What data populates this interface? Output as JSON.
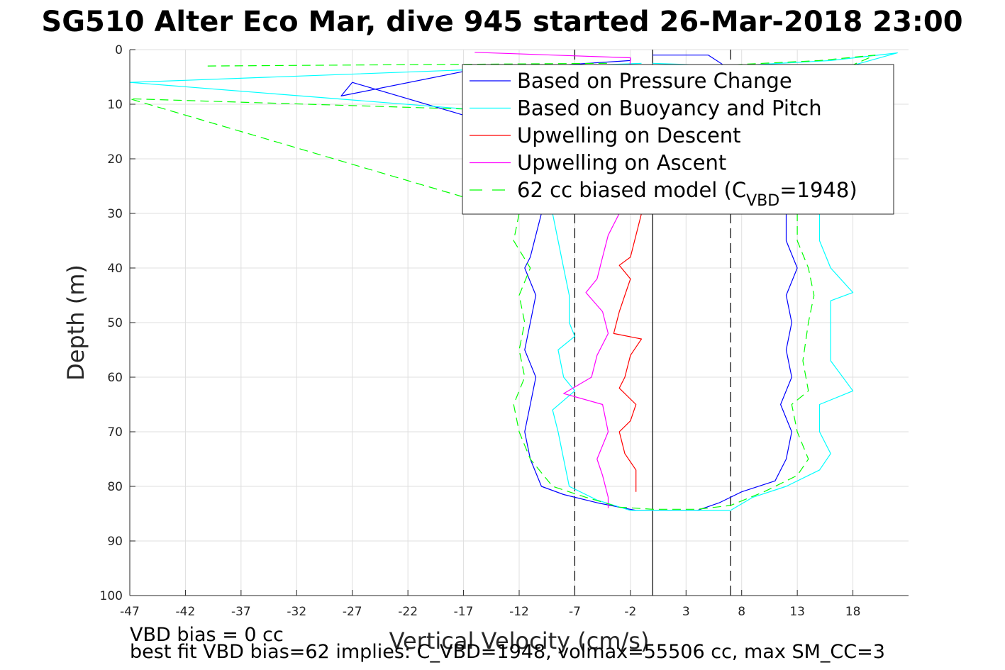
{
  "chart_data": {
    "type": "line",
    "title": "SG510 Alter Eco Mar, dive 945 started 26-Mar-2018 23:00",
    "xlabel": "Vertical Velocity (cm/s)",
    "ylabel": "Depth (m)",
    "xlim": [
      -47,
      23
    ],
    "ylim": [
      0,
      100
    ],
    "y_reversed": true,
    "grid": true,
    "x_ticks": [
      -47,
      -42,
      -37,
      -32,
      -27,
      -22,
      -17,
      -12,
      -7,
      -2,
      3,
      8,
      13,
      18
    ],
    "y_ticks": [
      0,
      10,
      20,
      30,
      40,
      50,
      60,
      70,
      80,
      90,
      100
    ],
    "legend_position": "top-right",
    "reference_lines": [
      {
        "orientation": "vertical",
        "x": 0,
        "style": "solid",
        "color": "#000000"
      },
      {
        "orientation": "vertical",
        "x": -7,
        "style": "dashed",
        "color": "#000000"
      },
      {
        "orientation": "vertical",
        "x": 7,
        "style": "dashed",
        "color": "#000000"
      }
    ],
    "series": [
      {
        "name": "Based on Pressure Change",
        "color": "#0000ff",
        "style": "solid",
        "points": [
          [
            -2,
            1.5
          ],
          [
            -2,
            2
          ],
          [
            -17,
            4
          ],
          [
            -28,
            8.5
          ],
          [
            -27,
            6
          ],
          [
            -17,
            12
          ],
          [
            -10,
            22
          ],
          [
            -10,
            30
          ],
          [
            -10.5,
            34
          ],
          [
            -11,
            38
          ],
          [
            -11.5,
            40
          ],
          [
            -10.5,
            45
          ],
          [
            -11,
            50
          ],
          [
            -11.5,
            55
          ],
          [
            -10.5,
            60
          ],
          [
            -11,
            65
          ],
          [
            -11.5,
            70
          ],
          [
            -11,
            75
          ],
          [
            -10,
            80
          ],
          [
            -8,
            81.5
          ],
          [
            -5,
            83
          ],
          [
            -1.5,
            84.4
          ],
          [
            0,
            84.4
          ],
          [
            4,
            84.4
          ],
          [
            6,
            83
          ],
          [
            8,
            81
          ],
          [
            11,
            79
          ],
          [
            12,
            75
          ],
          [
            12.5,
            70
          ],
          [
            11.5,
            65
          ],
          [
            12.5,
            60
          ],
          [
            12,
            55
          ],
          [
            12.5,
            50
          ],
          [
            12,
            45
          ],
          [
            13,
            40
          ],
          [
            12,
            35
          ],
          [
            12,
            30
          ],
          [
            12,
            22
          ],
          [
            8,
            5
          ],
          [
            5,
            1
          ],
          [
            0,
            1
          ]
        ]
      },
      {
        "name": "Based on Buoyancy and Pitch",
        "color": "#00ffff",
        "style": "solid",
        "points": [
          [
            -1,
            2.5
          ],
          [
            -47,
            6
          ],
          [
            -16,
            11
          ],
          [
            -8,
            22
          ],
          [
            -9,
            30
          ],
          [
            -8.5,
            35
          ],
          [
            -8,
            40
          ],
          [
            -7.5,
            45
          ],
          [
            -7.5,
            50
          ],
          [
            -7,
            52.5
          ],
          [
            -8.5,
            55
          ],
          [
            -8,
            60
          ],
          [
            -7,
            62.5
          ],
          [
            -9,
            66
          ],
          [
            -8.5,
            70
          ],
          [
            -8,
            75
          ],
          [
            -7.5,
            80
          ],
          [
            -5,
            82.5
          ],
          [
            -2,
            84.4
          ],
          [
            0,
            84.4
          ],
          [
            4,
            84.4
          ],
          [
            7,
            84.4
          ],
          [
            9,
            82
          ],
          [
            12,
            80
          ],
          [
            15,
            77
          ],
          [
            16,
            74
          ],
          [
            15,
            70
          ],
          [
            15,
            65
          ],
          [
            18,
            62.5
          ],
          [
            16,
            57
          ],
          [
            16,
            50
          ],
          [
            16,
            46
          ],
          [
            18,
            44.5
          ],
          [
            16,
            40
          ],
          [
            15,
            35
          ],
          [
            15,
            30
          ],
          [
            14,
            20
          ],
          [
            9,
            8
          ],
          [
            22,
            0.6
          ],
          [
            16,
            2
          ],
          [
            7,
            3
          ],
          [
            0,
            2.5
          ]
        ]
      },
      {
        "name": "Upwelling on Descent",
        "color": "#ff0000",
        "style": "solid",
        "points": [
          [
            -1,
            30
          ],
          [
            -1.5,
            34
          ],
          [
            -2,
            38
          ],
          [
            -3,
            39.5
          ],
          [
            -2,
            42
          ],
          [
            -2.5,
            45
          ],
          [
            -3,
            48
          ],
          [
            -3.5,
            52
          ],
          [
            -1,
            53
          ],
          [
            -2,
            56
          ],
          [
            -2.5,
            60
          ],
          [
            -3,
            62
          ],
          [
            -1.5,
            65
          ],
          [
            -2,
            68
          ],
          [
            -3,
            70
          ],
          [
            -2.5,
            74
          ],
          [
            -1.5,
            77
          ],
          [
            -1.5,
            81
          ]
        ]
      },
      {
        "name": "Upwelling on Ascent",
        "color": "#ff00ff",
        "style": "solid",
        "points": [
          [
            -16,
            0.5
          ],
          [
            -2,
            1.5
          ],
          [
            -3,
            30
          ],
          [
            -4,
            34
          ],
          [
            -4.5,
            38
          ],
          [
            -5,
            42
          ],
          [
            -6,
            44.5
          ],
          [
            -4.5,
            48
          ],
          [
            -4,
            52
          ],
          [
            -5,
            56
          ],
          [
            -5.5,
            60
          ],
          [
            -8,
            63
          ],
          [
            -4.5,
            65
          ],
          [
            -4,
            70
          ],
          [
            -5,
            75
          ],
          [
            -4.5,
            78
          ],
          [
            -4,
            82
          ],
          [
            -4,
            84
          ]
        ]
      },
      {
        "name": "62 cc biased model (C_VBD=1948)",
        "color": "#00ff00",
        "style": "dashed",
        "points": [
          [
            -40,
            3
          ],
          [
            -4,
            2.5
          ],
          [
            -15,
            11
          ],
          [
            -47,
            9
          ],
          [
            -12,
            30
          ],
          [
            -12.5,
            35
          ],
          [
            -11,
            40
          ],
          [
            -12,
            45
          ],
          [
            -11.5,
            50
          ],
          [
            -12,
            55
          ],
          [
            -11.5,
            60
          ],
          [
            -12.5,
            65
          ],
          [
            -12,
            70
          ],
          [
            -11,
            75
          ],
          [
            -9,
            80
          ],
          [
            -6,
            82
          ],
          [
            -3,
            83.8
          ],
          [
            0,
            84.2
          ],
          [
            4,
            84.2
          ],
          [
            7,
            83.5
          ],
          [
            10,
            81
          ],
          [
            13,
            78
          ],
          [
            14,
            75
          ],
          [
            13,
            70
          ],
          [
            12.5,
            65
          ],
          [
            14,
            62.5
          ],
          [
            13.5,
            57
          ],
          [
            14,
            50
          ],
          [
            14.5,
            45
          ],
          [
            14,
            40
          ],
          [
            13,
            35
          ],
          [
            13,
            30
          ],
          [
            12,
            20
          ],
          [
            10,
            10
          ],
          [
            20,
            1
          ],
          [
            15,
            2
          ],
          [
            5,
            3
          ]
        ]
      }
    ],
    "legend": {
      "entries": [
        {
          "label": "Based on Pressure Change",
          "color": "#0000ff",
          "style": "solid"
        },
        {
          "label": "Based on Buoyancy and Pitch",
          "color": "#00ffff",
          "style": "solid"
        },
        {
          "label": "Upwelling on Descent",
          "color": "#ff0000",
          "style": "solid"
        },
        {
          "label": "Upwelling on Ascent",
          "color": "#ff00ff",
          "style": "solid"
        },
        {
          "label": "62 cc biased model (C",
          "subscript": "VBD",
          "suffix": "=1948)",
          "color": "#00ff00",
          "style": "dashed"
        }
      ]
    },
    "annotations": [
      "VBD bias = 0 cc",
      "best fit VBD bias=62 implies: C_VBD=1948, volmax=55506 cc, max SM_CC=3"
    ]
  }
}
